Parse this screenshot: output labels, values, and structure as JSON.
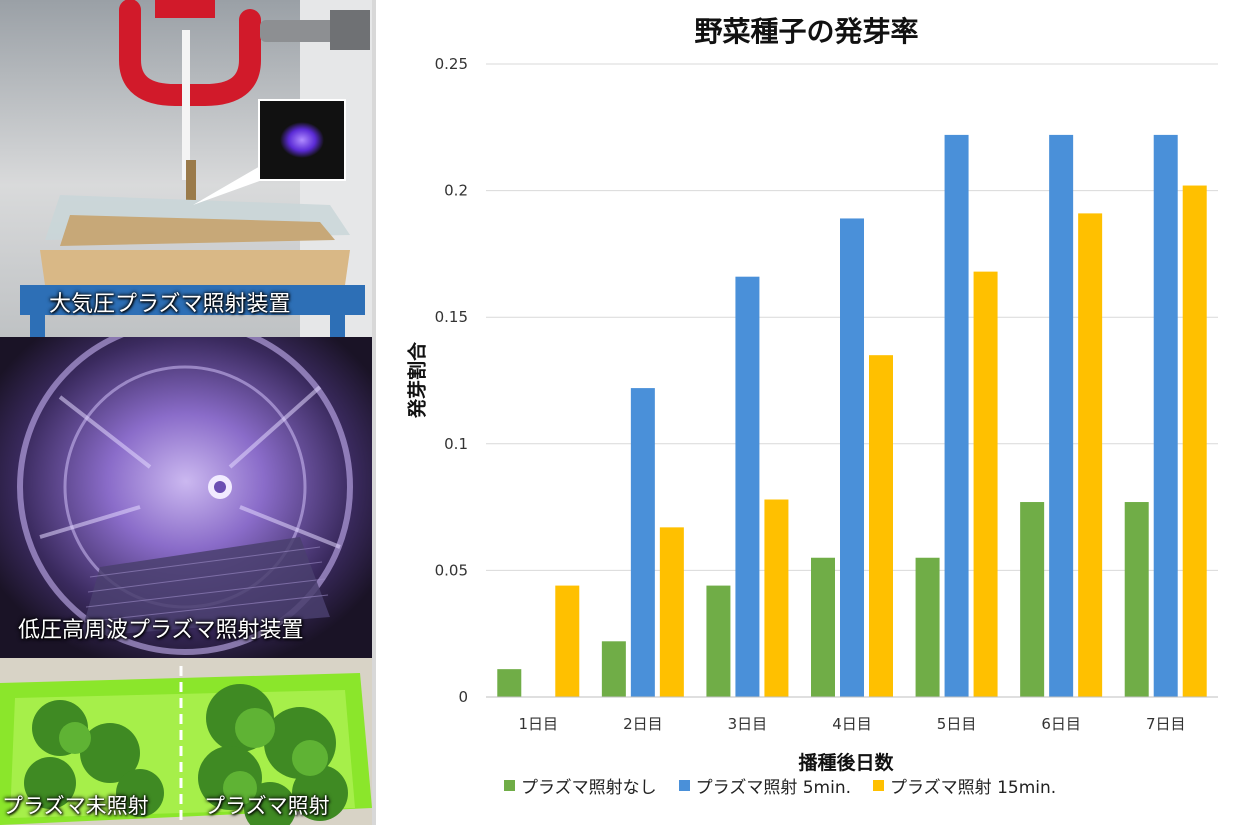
{
  "photos": [
    {
      "caption": "大気圧プラズマ照射装置"
    },
    {
      "caption": "低圧高周波プラズマ照射装置"
    },
    {
      "caption_left": "プラズマ未照射",
      "caption_right": "プラズマ照射"
    }
  ],
  "colors": {
    "series_none": "#70ad47",
    "series_5min": "#4a90d9",
    "series_15min": "#ffc000",
    "grid": "#d9d9d9"
  },
  "chart_data": {
    "type": "bar",
    "title": "野菜種子の発芽率",
    "xlabel": "播種後日数",
    "ylabel": "発芽割合",
    "ylim": [
      0,
      0.25
    ],
    "yticks": [
      "0",
      "0.05",
      "0.1",
      "0.15",
      "0.2",
      "0.25"
    ],
    "ytick_values": [
      0,
      0.05,
      0.1,
      0.15,
      0.2,
      0.25
    ],
    "grid": true,
    "legend_position": "bottom",
    "categories": [
      "1日目",
      "2日目",
      "3日目",
      "4日目",
      "5日目",
      "6日目",
      "7日目"
    ],
    "series": [
      {
        "name": "プラズマ照射なし",
        "values": [
          0.011,
          0.022,
          0.044,
          0.055,
          0.055,
          0.077,
          0.077
        ]
      },
      {
        "name": "プラズマ照射 5min.",
        "values": [
          0,
          0.122,
          0.166,
          0.189,
          0.222,
          0.222,
          0.222
        ]
      },
      {
        "name": "プラズマ照射 15min.",
        "values": [
          0.044,
          0.067,
          0.078,
          0.135,
          0.168,
          0.191,
          0.202
        ]
      }
    ]
  }
}
